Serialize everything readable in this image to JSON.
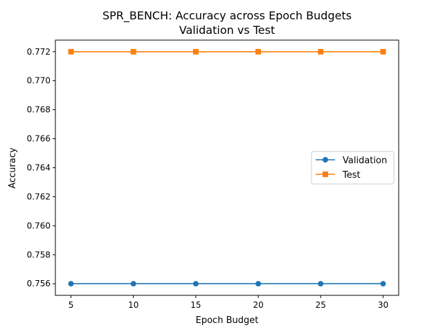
{
  "chart_data": {
    "type": "line",
    "title": "SPR_BENCH: Accuracy across Epoch Budgets",
    "subtitle": "Validation vs Test",
    "xlabel": "Epoch Budget",
    "ylabel": "Accuracy",
    "x": [
      5,
      10,
      15,
      20,
      25,
      30
    ],
    "xlim": [
      3.75,
      31.25
    ],
    "ylim": [
      0.7552,
      0.7728
    ],
    "xticks": [
      "5",
      "10",
      "15",
      "20",
      "25",
      "30"
    ],
    "yticks": [
      "0.756",
      "0.758",
      "0.760",
      "0.762",
      "0.764",
      "0.766",
      "0.768",
      "0.770",
      "0.772"
    ],
    "grid": false,
    "legend_position": "center-right",
    "series": [
      {
        "name": "Validation",
        "values": [
          0.756,
          0.756,
          0.756,
          0.756,
          0.756,
          0.756
        ],
        "color": "#1f77b4",
        "marker": "circle"
      },
      {
        "name": "Test",
        "values": [
          0.772,
          0.772,
          0.772,
          0.772,
          0.772,
          0.772
        ],
        "color": "#ff7f0e",
        "marker": "square"
      }
    ]
  }
}
